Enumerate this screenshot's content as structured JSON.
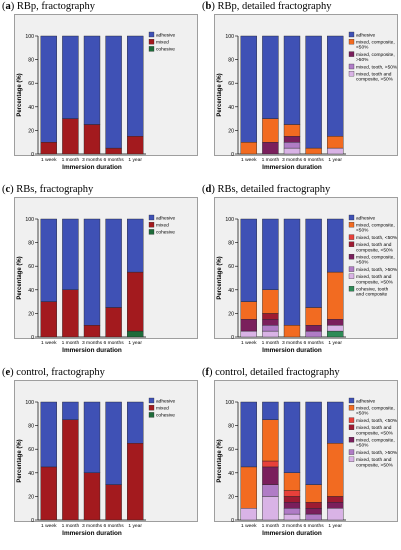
{
  "chart_data": [
    {
      "type": "bar",
      "stacked": true,
      "label_letter": "a",
      "title": "RBp, fractography",
      "ylabel": "Percentage (%)",
      "xlabel": "Immersion duration",
      "ylim": [
        0,
        100
      ],
      "yticks": [
        0,
        20,
        40,
        60,
        80,
        100
      ],
      "categories": [
        "1 week",
        "1 month",
        "3 months",
        "6 months",
        "1 year"
      ],
      "series": [
        {
          "name": "cohesive",
          "color": "#1e6b3a",
          "values": [
            0,
            0,
            0,
            0,
            0
          ]
        },
        {
          "name": "mixed",
          "color": "#a31a1e",
          "values": [
            10,
            30,
            25,
            5,
            15
          ]
        },
        {
          "name": "adhesive",
          "color": "#3f51b5",
          "values": [
            90,
            70,
            75,
            95,
            85
          ]
        }
      ],
      "legend": "top-right"
    },
    {
      "type": "bar",
      "stacked": true,
      "label_letter": "b",
      "title": "RBp, detailed fractography",
      "ylabel": "Percentage (%)",
      "xlabel": "Immersion duration",
      "ylim": [
        0,
        100
      ],
      "yticks": [
        0,
        20,
        40,
        60,
        80,
        100
      ],
      "categories": [
        "1 week",
        "1 month",
        "3 months",
        "6 months",
        "1 year"
      ],
      "series": [
        {
          "name": "mixed, tooth and composite, >50%",
          "color": "#d9b3e6",
          "values": [
            0,
            0,
            5,
            0,
            5
          ]
        },
        {
          "name": "mixed, tooth, >50%",
          "color": "#b07cc6",
          "values": [
            0,
            0,
            5,
            0,
            0
          ]
        },
        {
          "name": "mixed, composite, >50%",
          "color": "#7a1f5c",
          "values": [
            0,
            10,
            5,
            0,
            0
          ]
        },
        {
          "name": "mixed, composite, <50%",
          "color": "#f26b21",
          "values": [
            10,
            20,
            10,
            5,
            10
          ]
        },
        {
          "name": "adhesive",
          "color": "#3f51b5",
          "values": [
            90,
            70,
            75,
            95,
            85
          ]
        }
      ],
      "legend": "top-right"
    },
    {
      "type": "bar",
      "stacked": true,
      "label_letter": "c",
      "title": "RBs, fractography",
      "ylabel": "Percentage (%)",
      "xlabel": "Immersion duration",
      "ylim": [
        0,
        100
      ],
      "yticks": [
        0,
        20,
        40,
        60,
        80,
        100
      ],
      "categories": [
        "1 week",
        "1 month",
        "3 months",
        "6 months",
        "1 year"
      ],
      "series": [
        {
          "name": "cohesive",
          "color": "#1e6b3a",
          "values": [
            0,
            0,
            0,
            0,
            5
          ]
        },
        {
          "name": "mixed",
          "color": "#a31a1e",
          "values": [
            30,
            40,
            10,
            25,
            50
          ]
        },
        {
          "name": "adhesive",
          "color": "#3f51b5",
          "values": [
            70,
            60,
            90,
            75,
            45
          ]
        }
      ],
      "legend": "top-right"
    },
    {
      "type": "bar",
      "stacked": true,
      "label_letter": "d",
      "title": "RBs, detailed fractography",
      "ylabel": "Percentage (%)",
      "xlabel": "Immersion duration",
      "ylim": [
        0,
        100
      ],
      "yticks": [
        0,
        20,
        40,
        60,
        80,
        100
      ],
      "categories": [
        "1 week",
        "1 month",
        "3 months",
        "6 months",
        "1 year"
      ],
      "series": [
        {
          "name": "cohesive, tooth and composite",
          "color": "#2e8b57",
          "values": [
            0,
            0,
            0,
            0,
            5
          ]
        },
        {
          "name": "mixed, tooth and composite, >50%",
          "color": "#d9b3e6",
          "values": [
            5,
            5,
            0,
            0,
            5
          ]
        },
        {
          "name": "mixed, tooth, >50%",
          "color": "#b07cc6",
          "values": [
            0,
            5,
            0,
            5,
            0
          ]
        },
        {
          "name": "mixed, composite, >50%",
          "color": "#7a1f5c",
          "values": [
            10,
            5,
            0,
            5,
            5
          ]
        },
        {
          "name": "mixed, tooth and composite, <50%",
          "color": "#9e1b32",
          "values": [
            0,
            5,
            0,
            0,
            0
          ]
        },
        {
          "name": "mixed, tooth, <50%",
          "color": "#e8403a",
          "values": [
            0,
            0,
            0,
            0,
            0
          ]
        },
        {
          "name": "mixed, composite, <50%",
          "color": "#f26b21",
          "values": [
            15,
            20,
            10,
            15,
            40
          ]
        },
        {
          "name": "adhesive",
          "color": "#3f51b5",
          "values": [
            70,
            60,
            90,
            75,
            45
          ]
        }
      ],
      "legend": "top-right"
    },
    {
      "type": "bar",
      "stacked": true,
      "label_letter": "e",
      "title": "control, fractography",
      "ylabel": "Percentage (%)",
      "xlabel": "Immersion duration",
      "ylim": [
        0,
        100
      ],
      "yticks": [
        0,
        20,
        40,
        60,
        80,
        100
      ],
      "categories": [
        "1 week",
        "1 month",
        "3 months",
        "6 months",
        "1 year"
      ],
      "series": [
        {
          "name": "cohesive",
          "color": "#1e6b3a",
          "values": [
            0,
            0,
            0,
            0,
            0
          ]
        },
        {
          "name": "mixed",
          "color": "#a31a1e",
          "values": [
            45,
            85,
            40,
            30,
            65
          ]
        },
        {
          "name": "adhesive",
          "color": "#3f51b5",
          "values": [
            55,
            15,
            60,
            70,
            35
          ]
        }
      ],
      "legend": "top-right"
    },
    {
      "type": "bar",
      "stacked": true,
      "label_letter": "f",
      "title": "control, detailed fractography",
      "ylabel": "Percentage (%)",
      "xlabel": "Immersion duration",
      "ylim": [
        0,
        100
      ],
      "yticks": [
        0,
        20,
        40,
        60,
        80,
        100
      ],
      "categories": [
        "1 week",
        "1 month",
        "3 months",
        "6 months",
        "1 year"
      ],
      "series": [
        {
          "name": "mixed, tooth and composite, >50%",
          "color": "#d9b3e6",
          "values": [
            10,
            20,
            5,
            0,
            10
          ]
        },
        {
          "name": "mixed, tooth, >50%",
          "color": "#b07cc6",
          "values": [
            0,
            10,
            5,
            5,
            0
          ]
        },
        {
          "name": "mixed, composite, >50%",
          "color": "#7a1f5c",
          "values": [
            0,
            15,
            5,
            5,
            5
          ]
        },
        {
          "name": "mixed, tooth and composite, <50%",
          "color": "#9e1b32",
          "values": [
            0,
            0,
            5,
            5,
            5
          ]
        },
        {
          "name": "mixed, tooth, <50%",
          "color": "#e8403a",
          "values": [
            0,
            5,
            5,
            0,
            0
          ]
        },
        {
          "name": "mixed, composite, <50%",
          "color": "#f26b21",
          "values": [
            35,
            35,
            15,
            15,
            45
          ]
        },
        {
          "name": "adhesive",
          "color": "#3f51b5",
          "values": [
            55,
            15,
            60,
            70,
            35
          ]
        }
      ],
      "legend": "top-right"
    }
  ]
}
